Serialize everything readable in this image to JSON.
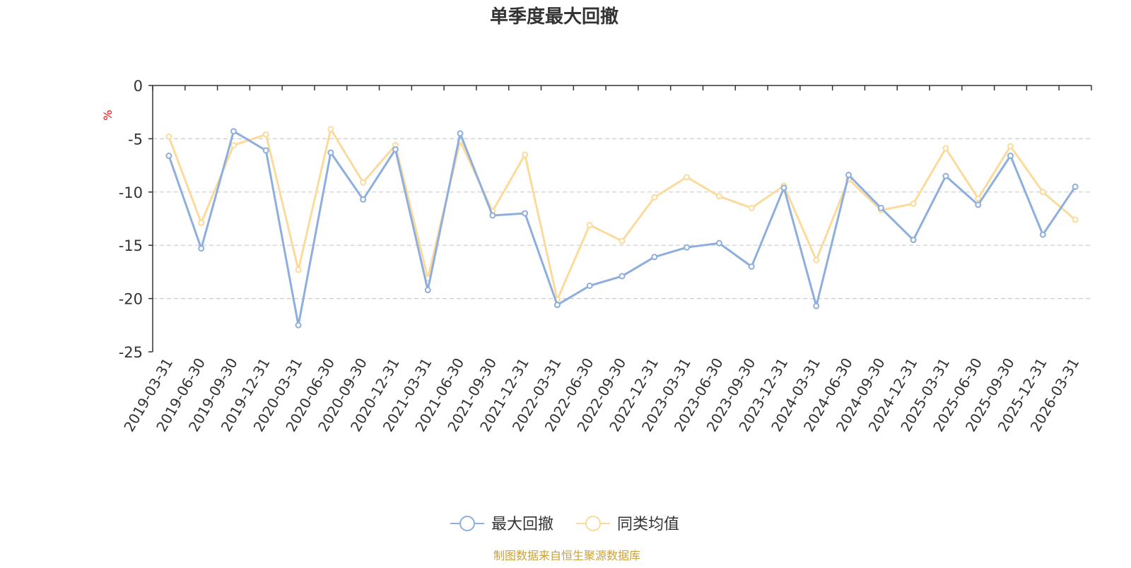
{
  "chart_data": {
    "type": "line",
    "title": "单季度最大回撤",
    "ylabel": "%",
    "xlabel": "",
    "ylim": [
      -25,
      0
    ],
    "yticks": [
      0,
      -5,
      -10,
      -15,
      -20,
      -25
    ],
    "grid": true,
    "legend_position": "bottom-center",
    "categories": [
      "2019-03-31",
      "2019-06-30",
      "2019-09-30",
      "2019-12-31",
      "2020-03-31",
      "2020-06-30",
      "2020-09-30",
      "2020-12-31",
      "2021-03-31",
      "2021-06-30",
      "2021-09-30",
      "2021-12-31",
      "2022-03-31",
      "2022-06-30",
      "2022-09-30",
      "2022-12-31",
      "2023-03-31",
      "2023-06-30",
      "2023-09-30",
      "2023-12-31",
      "2024-03-31",
      "2024-06-30",
      "2024-09-30",
      "2024-12-31",
      "2025-03-31",
      "2025-06-30",
      "2025-09-30",
      "2025-12-31",
      "2026-03-31"
    ],
    "series": [
      {
        "name": "最大回撤",
        "color": "#8eaedd",
        "values": [
          -6.6,
          -15.3,
          -4.3,
          -6.1,
          -22.5,
          -6.3,
          -10.7,
          -6.0,
          -19.2,
          -4.5,
          -12.2,
          -12.0,
          -20.6,
          -18.8,
          -17.9,
          -16.1,
          -15.2,
          -14.8,
          -17.0,
          -9.6,
          -20.7,
          -8.4,
          -11.5,
          -14.5,
          -8.5,
          -11.2,
          -6.6,
          -14.0,
          -9.5
        ]
      },
      {
        "name": "同类均值",
        "color": "#fbdb9c",
        "values": [
          -4.8,
          -12.9,
          -5.6,
          -4.6,
          -17.3,
          -4.1,
          -9.1,
          -5.6,
          -18.1,
          -5.2,
          -11.8,
          -6.5,
          -20.1,
          -13.1,
          -14.6,
          -10.5,
          -8.6,
          -10.4,
          -11.5,
          -9.4,
          -16.4,
          -8.8,
          -11.7,
          -11.1,
          -5.9,
          -10.6,
          -5.7,
          -10.0,
          -12.6
        ]
      }
    ]
  },
  "footer": {
    "source": "制图数据来自恒生聚源数据库"
  },
  "colors": {
    "title": "#333333",
    "axis": "#333333",
    "grid": "#cccccc",
    "ylabel": "#ff0000",
    "source": "#c9a23a"
  }
}
